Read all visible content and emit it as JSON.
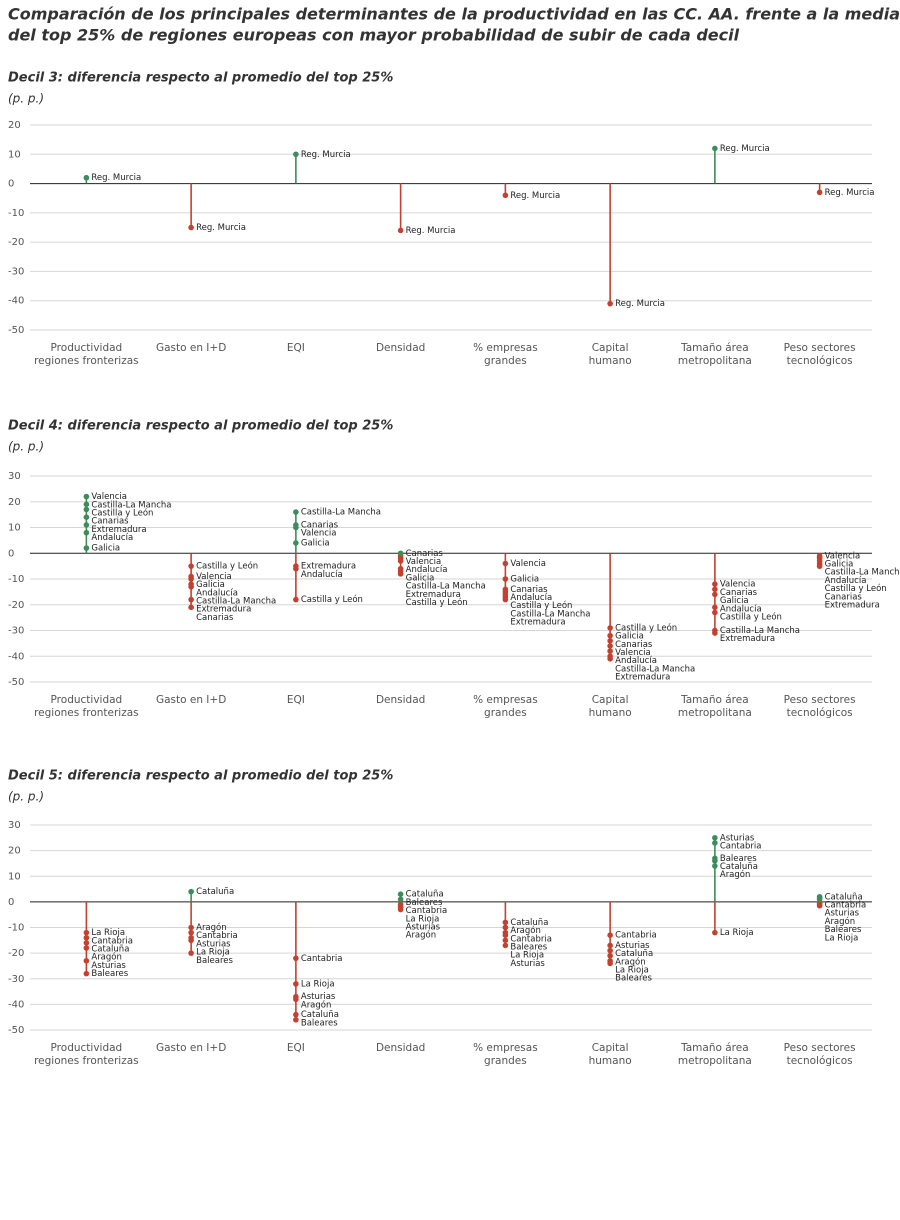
{
  "title": [
    "Comparación de los principales determinantes de la productividad en las CC. AA. frente a la media",
    "del top 25% de regiones europeas con mayor probabilidad de subir de cada decil"
  ],
  "chart_data": [
    {
      "type": "lollipop",
      "title": "Decil 3: diferencia respecto al promedio del top 25%",
      "subtitle": "(p. p.)",
      "categories": [
        [
          "Productividad",
          "regiones fronterizas"
        ],
        [
          "Gasto en I+D"
        ],
        [
          "EQI"
        ],
        [
          "Densidad"
        ],
        [
          "% empresas",
          "grandes"
        ],
        [
          "Capital",
          "humano"
        ],
        [
          "Tamaño área",
          "metropolitana"
        ],
        [
          "Peso sectores",
          "tecnológicos"
        ]
      ],
      "series": [
        {
          "name": "Reg. Murcia",
          "values": [
            2,
            -15,
            10,
            -16,
            -4,
            -41,
            12,
            -3
          ]
        }
      ],
      "ylim": [
        -50,
        20
      ],
      "yticks": [
        20,
        10,
        0,
        -10,
        -20,
        -30,
        -40,
        -50
      ],
      "grid": true,
      "positive_color": "#3d8c5c",
      "negative_color": "#c4412f"
    },
    {
      "type": "lollipop",
      "title": "Decil 4: diferencia respecto al promedio del top 25%",
      "subtitle": "(p. p.)",
      "categories": [
        [
          "Productividad",
          "regiones fronterizas"
        ],
        [
          "Gasto en I+D"
        ],
        [
          "EQI"
        ],
        [
          "Densidad"
        ],
        [
          "% empresas",
          "grandes"
        ],
        [
          "Capital",
          "humano"
        ],
        [
          "Tamaño área",
          "metropolitana"
        ],
        [
          "Peso sectores",
          "tecnológicos"
        ]
      ],
      "series": [
        {
          "name": "Valencia",
          "values": [
            22,
            -9,
            10,
            -1,
            -4,
            -36,
            -12,
            -1
          ]
        },
        {
          "name": "Castilla-La Mancha",
          "values": [
            19,
            -13,
            16,
            -6,
            -17,
            -40,
            -30,
            -2
          ]
        },
        {
          "name": "Castilla y León",
          "values": [
            17,
            -5,
            -18,
            -8,
            -16,
            -29,
            -23,
            -4
          ]
        },
        {
          "name": "Canarias",
          "values": [
            14,
            -21,
            11,
            0,
            -14,
            -34,
            -14,
            -5
          ]
        },
        {
          "name": "Extremadura",
          "values": [
            11,
            -18,
            -5,
            -7,
            -18,
            -41,
            -31,
            -5
          ]
        },
        {
          "name": "Andalucía",
          "values": [
            8,
            -12,
            -6,
            -2,
            -15,
            -38,
            -21,
            -3
          ]
        },
        {
          "name": "Galicia",
          "values": [
            2,
            -10,
            4,
            -3,
            -10,
            -32,
            -16,
            -1.5
          ]
        }
      ],
      "ylim": [
        -50,
        30
      ],
      "yticks": [
        30,
        20,
        10,
        0,
        -10,
        -20,
        -30,
        -40,
        -50
      ],
      "grid": true,
      "positive_color": "#3d8c5c",
      "negative_color": "#c4412f"
    },
    {
      "type": "lollipop",
      "title": "Decil 5: diferencia respecto al promedio del top 25%",
      "subtitle": "(p. p.)",
      "categories": [
        [
          "Productividad",
          "regiones fronterizas"
        ],
        [
          "Gasto en I+D"
        ],
        [
          "EQI"
        ],
        [
          "Densidad"
        ],
        [
          "% empresas",
          "grandes"
        ],
        [
          "Capital",
          "humano"
        ],
        [
          "Tamaño área",
          "metropolitana"
        ],
        [
          "Peso sectores",
          "tecnológicos"
        ]
      ],
      "series": [
        {
          "name": "La Rioja",
          "values": [
            -12,
            -15,
            -32,
            -2,
            -15,
            -23,
            -12,
            -1.5
          ]
        },
        {
          "name": "Cantabria",
          "values": [
            -14,
            -12,
            -22,
            -1,
            -12,
            -13,
            23,
            1.5
          ]
        },
        {
          "name": "Cataluña",
          "values": [
            -16,
            4,
            -44,
            3,
            -8,
            -19,
            16,
            2
          ]
        },
        {
          "name": "Aragón",
          "values": [
            -18,
            -10,
            -38,
            -3,
            -10,
            -21,
            14,
            -0.5
          ]
        },
        {
          "name": "Asturias",
          "values": [
            -23,
            -14,
            -37,
            -2,
            -17,
            -17,
            25,
            1
          ]
        },
        {
          "name": "Baleares",
          "values": [
            -28,
            -20,
            -46,
            1,
            -13,
            -24,
            17,
            -1
          ]
        }
      ],
      "ylim": [
        -50,
        30
      ],
      "yticks": [
        30,
        20,
        10,
        0,
        -10,
        -20,
        -30,
        -40,
        -50
      ],
      "grid": true,
      "positive_color": "#3d8c5c",
      "negative_color": "#c4412f"
    }
  ]
}
